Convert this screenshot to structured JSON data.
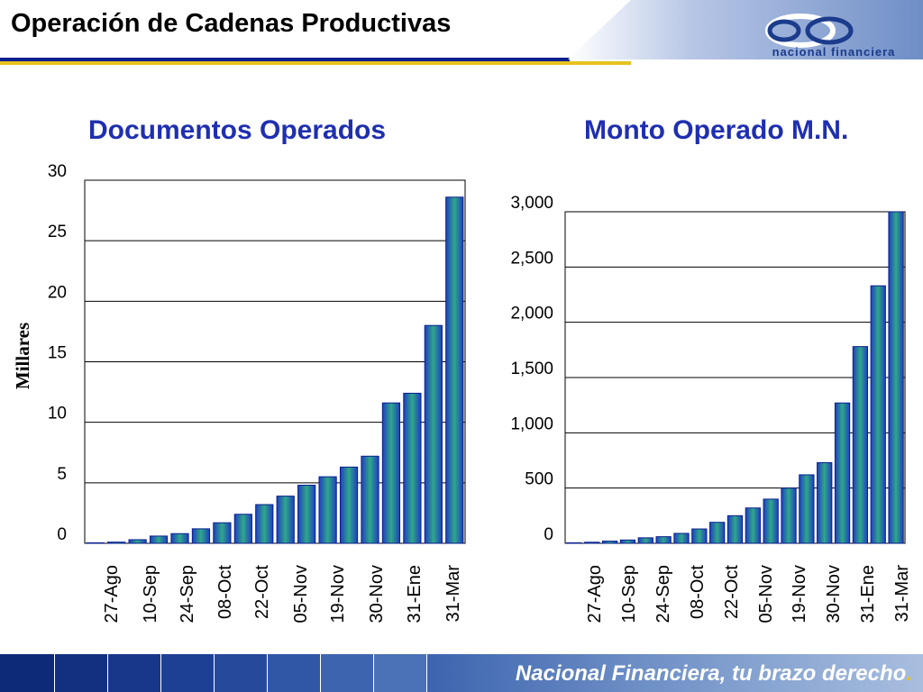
{
  "slide": {
    "title": "Operación de Cadenas Productivas",
    "logo_text": "nacional financiera",
    "footer_tagline": "Nacional Financiera, tu brazo derecho",
    "footer_period": ".",
    "colors": {
      "title_rule": "#0a1f8f",
      "accent_rule": "#e6c21e",
      "heading": "#1f2fb0",
      "bar": "#2a7fb8"
    }
  },
  "chart_data": [
    {
      "type": "bar",
      "title": "Documentos Operados",
      "ylabel": "Millares",
      "xlabel": "",
      "ylim": [
        0,
        30
      ],
      "yticks": [
        "30",
        "25",
        "20",
        "15",
        "10",
        "5",
        "0"
      ],
      "xtick_labels": [
        "27-Ago",
        "10-Sep",
        "24-Sep",
        "08-Oct",
        "22-Oct",
        "05-Nov",
        "19-Nov",
        "30-Nov",
        "31-Ene",
        "31-Mar"
      ],
      "values": [
        0,
        0.1,
        0.3,
        0.6,
        0.8,
        1.2,
        1.7,
        2.4,
        3.2,
        3.9,
        4.8,
        5.5,
        6.3,
        7.2,
        11.6,
        12.4,
        18.0,
        28.6
      ],
      "grid": true
    },
    {
      "type": "bar",
      "title": "Monto Operado M.N.",
      "ylabel": "",
      "xlabel": "",
      "ylim": [
        0,
        3000
      ],
      "yticks": [
        "3,000",
        "2,500",
        "2,000",
        "1,500",
        "1,000",
        "500",
        "0"
      ],
      "xtick_labels": [
        "27-Ago",
        "10-Sep",
        "24-Sep",
        "08-Oct",
        "22-Oct",
        "05-Nov",
        "19-Nov",
        "30-Nov",
        "31-Ene",
        "31-Mar"
      ],
      "values": [
        0,
        10,
        20,
        30,
        50,
        60,
        90,
        130,
        190,
        250,
        320,
        400,
        500,
        620,
        730,
        1270,
        1780,
        2330,
        3000
      ],
      "grid": true
    }
  ]
}
